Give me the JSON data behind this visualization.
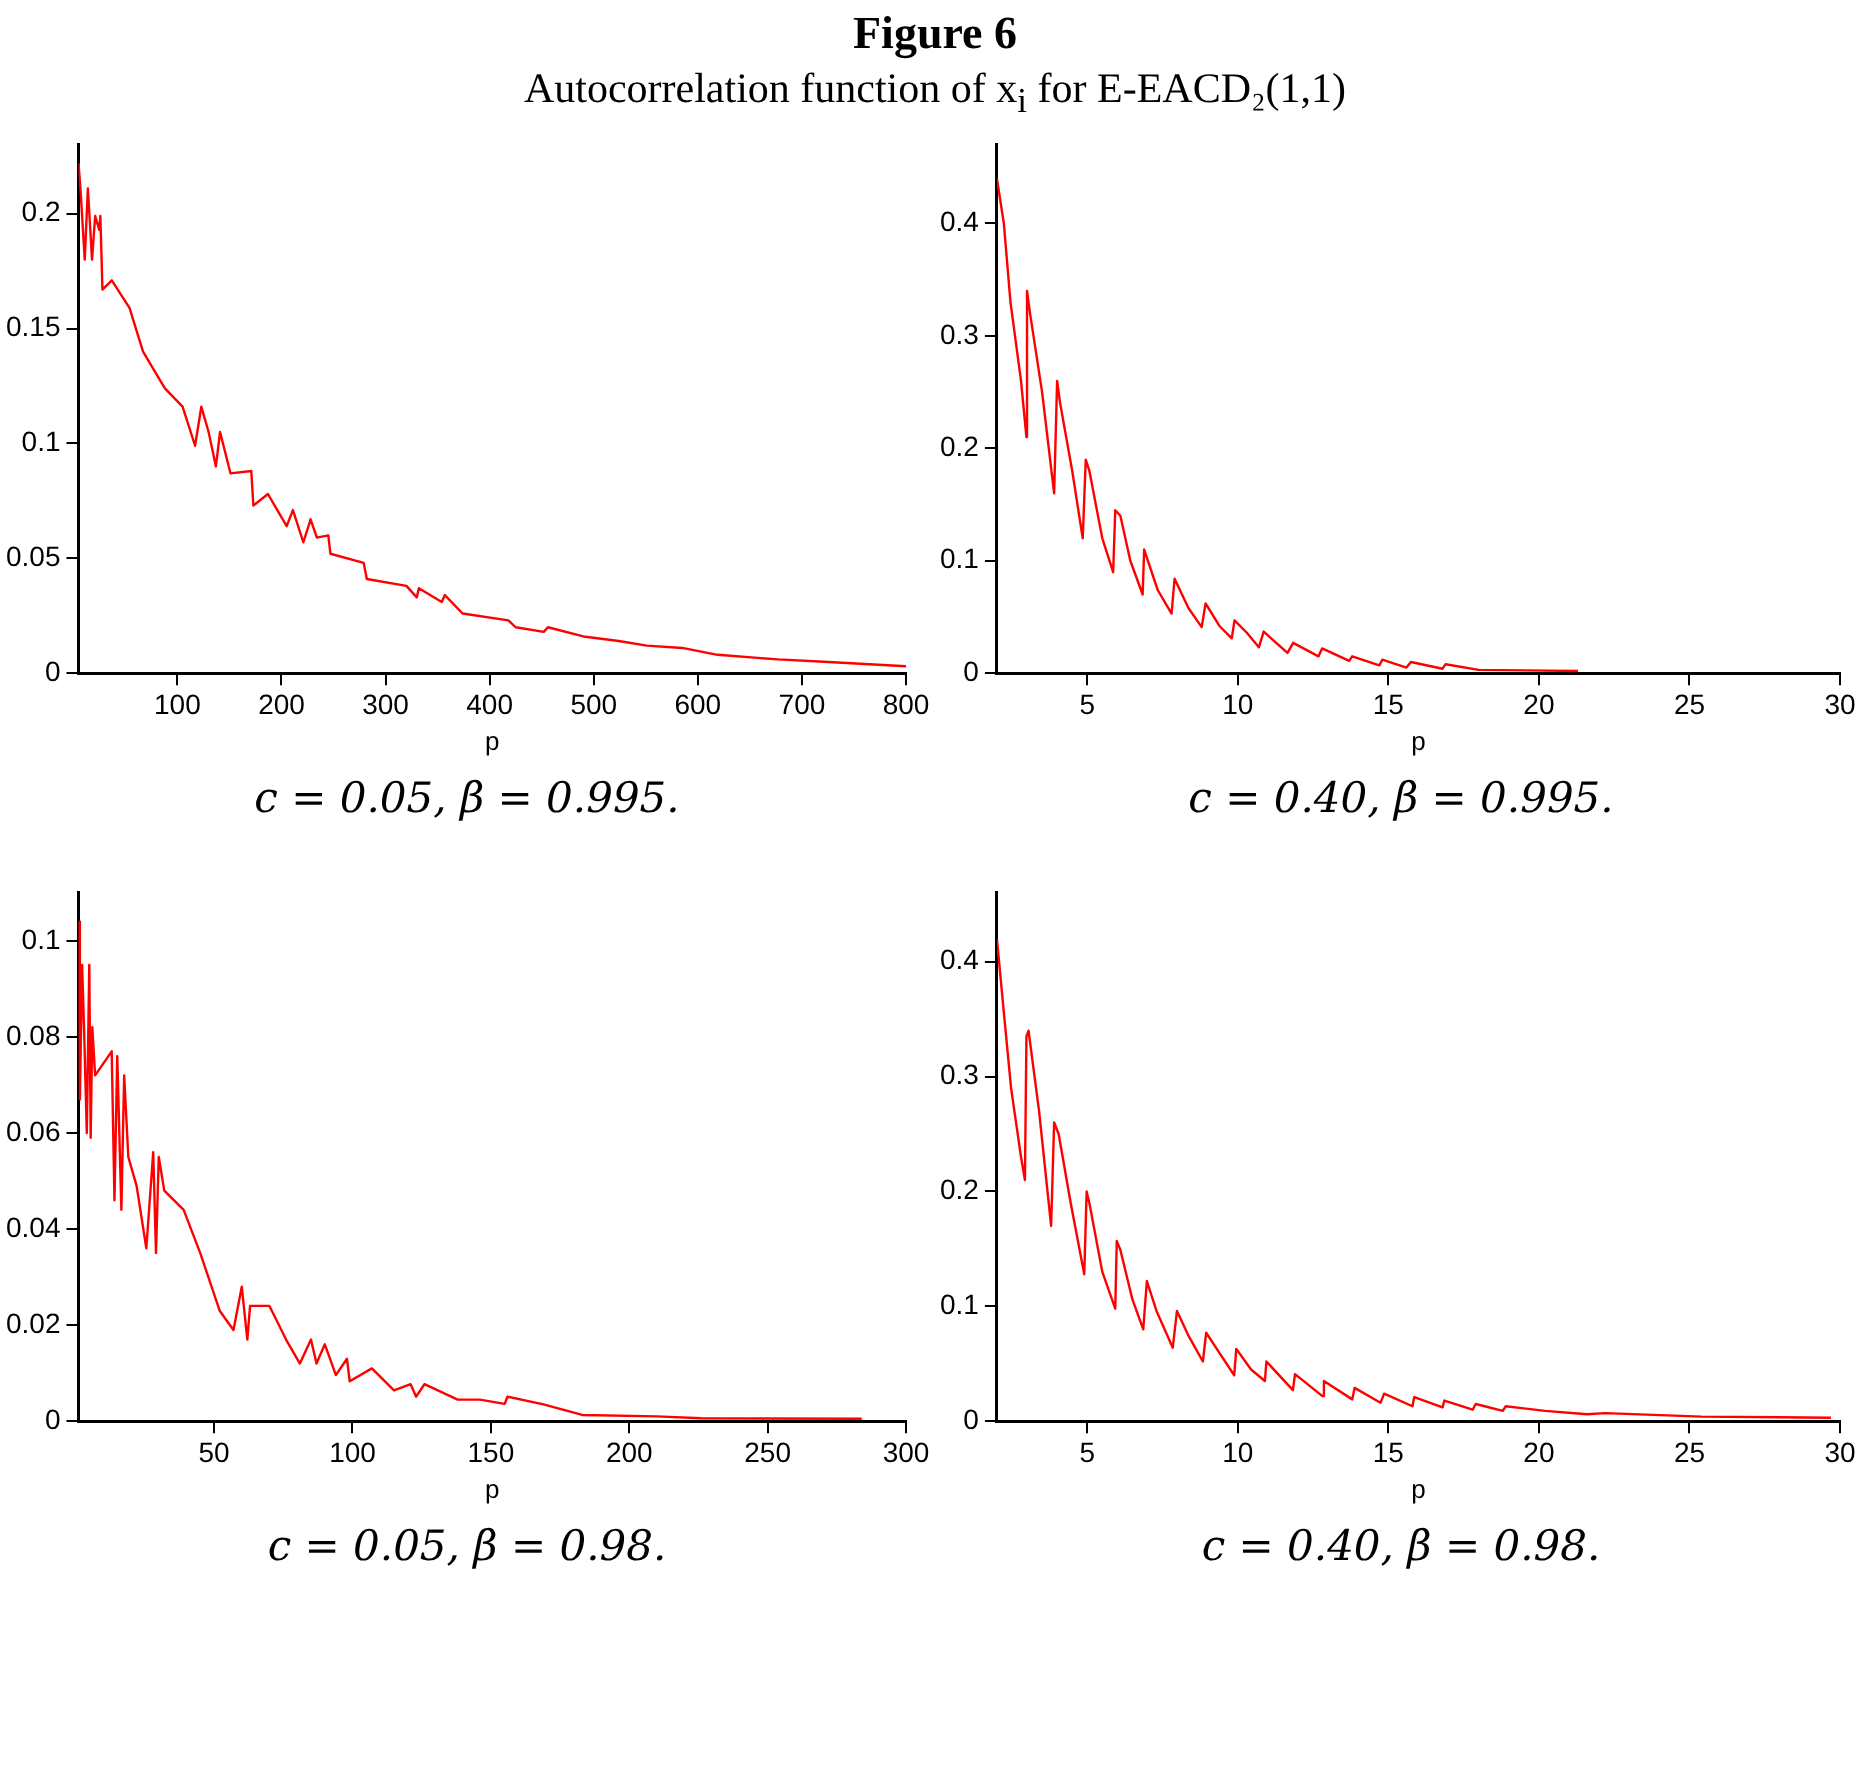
{
  "chart_data": [
    {
      "type": "line",
      "title": "Figure 6",
      "subtitle": "Autocorrelation function of x$_{i}$ for E-EACD₂(1,1)",
      "xlabel": "p",
      "xlim": [
        5,
        800
      ],
      "xticks": [
        100,
        200,
        300,
        400,
        500,
        600,
        700,
        800
      ],
      "ylim": [
        0,
        0.23
      ],
      "yticks": [
        0,
        0.05,
        0.1,
        0.15,
        0.2
      ],
      "grid": false,
      "legend": false,
      "marker": "none",
      "annotations": [
        "c = 0.05, β = 0.995."
      ],
      "series": [
        {
          "color": "#ff0000",
          "x": [
            5,
            7,
            11,
            14,
            18,
            21,
            25,
            26,
            28,
            37,
            54,
            67,
            88,
            105,
            117,
            123,
            130,
            137,
            141,
            151,
            171,
            173,
            187,
            205,
            211,
            221,
            228,
            234,
            245,
            247,
            279,
            282,
            320,
            330,
            332,
            354,
            357,
            374,
            418,
            425,
            452,
            456,
            490,
            524,
            551,
            585,
            619,
            677,
            721,
            800
          ],
          "values": [
            0.222,
            0.21,
            0.18,
            0.211,
            0.18,
            0.199,
            0.193,
            0.199,
            0.167,
            0.171,
            0.159,
            0.14,
            0.124,
            0.116,
            0.099,
            0.116,
            0.105,
            0.09,
            0.105,
            0.087,
            0.088,
            0.073,
            0.078,
            0.064,
            0.071,
            0.057,
            0.067,
            0.059,
            0.06,
            0.052,
            0.048,
            0.041,
            0.038,
            0.033,
            0.037,
            0.031,
            0.034,
            0.026,
            0.023,
            0.02,
            0.018,
            0.02,
            0.016,
            0.014,
            0.012,
            0.011,
            0.008,
            0.006,
            0.005,
            0.003
          ]
        }
      ]
    },
    {
      "type": "line",
      "xlabel": "p",
      "xlim": [
        2,
        30
      ],
      "xticks": [
        5,
        10,
        15,
        20,
        25,
        30
      ],
      "ylim": [
        0,
        0.47
      ],
      "yticks": [
        0,
        0.1,
        0.2,
        0.3,
        0.4
      ],
      "grid": false,
      "legend": false,
      "marker": "none",
      "annotations": [
        "c = 0.40, β = 0.995."
      ],
      "series": [
        {
          "color": "#ff0000",
          "x": [
            2,
            2.23,
            2.45,
            2.8,
            2.98,
            3,
            3.1,
            3.5,
            3.9,
            4,
            4.1,
            4.5,
            4.85,
            4.95,
            5.07,
            5.5,
            5.86,
            5.93,
            6.1,
            6.43,
            6.84,
            6.89,
            7.34,
            7.8,
            7.9,
            8.36,
            8.8,
            8.93,
            9.39,
            9.8,
            9.89,
            10.3,
            10.7,
            10.86,
            11.65,
            11.84,
            12.68,
            12.8,
            13.7,
            13.8,
            14.7,
            14.8,
            15.6,
            15.75,
            16.8,
            16.9,
            18,
            21.3
          ],
          "values": [
            0.44,
            0.4,
            0.33,
            0.26,
            0.21,
            0.34,
            0.32,
            0.25,
            0.16,
            0.26,
            0.24,
            0.18,
            0.12,
            0.19,
            0.18,
            0.12,
            0.09,
            0.145,
            0.14,
            0.1,
            0.07,
            0.11,
            0.074,
            0.053,
            0.084,
            0.058,
            0.041,
            0.062,
            0.042,
            0.031,
            0.047,
            0.036,
            0.023,
            0.037,
            0.018,
            0.027,
            0.015,
            0.022,
            0.011,
            0.015,
            0.007,
            0.012,
            0.005,
            0.01,
            0.004,
            0.008,
            0.003,
            0.002
          ]
        }
      ]
    },
    {
      "type": "line",
      "xlabel": "p",
      "xlim": [
        1,
        300
      ],
      "xticks": [
        50,
        100,
        150,
        200,
        250,
        300
      ],
      "ylim": [
        0,
        0.11
      ],
      "yticks": [
        0,
        0.02,
        0.04,
        0.06,
        0.08,
        0.1
      ],
      "grid": false,
      "legend": false,
      "marker": "none",
      "annotations": [
        "c = 0.05, β = 0.98."
      ],
      "series": [
        {
          "color": "#ff0000",
          "x": [
            1,
            1.5,
            2.3,
            3,
            4,
            4.9,
            5.4,
            6,
            7,
            13,
            14,
            15,
            16.5,
            17.5,
            19,
            22,
            25.5,
            28,
            29,
            30,
            32,
            39,
            45,
            52,
            57,
            60,
            62,
            63,
            70,
            76,
            81,
            85,
            87,
            90,
            94,
            98,
            99,
            107,
            115,
            121,
            123,
            126,
            138,
            146,
            155,
            156,
            169,
            183,
            210,
            226,
            284
          ],
          "values": [
            0.104,
            0.067,
            0.095,
            0.082,
            0.06,
            0.095,
            0.059,
            0.082,
            0.072,
            0.077,
            0.046,
            0.076,
            0.044,
            0.072,
            0.055,
            0.049,
            0.036,
            0.056,
            0.035,
            0.055,
            0.048,
            0.044,
            0.035,
            0.023,
            0.019,
            0.028,
            0.017,
            0.024,
            0.024,
            0.017,
            0.012,
            0.017,
            0.012,
            0.016,
            0.0096,
            0.013,
            0.0083,
            0.011,
            0.0064,
            0.0077,
            0.0051,
            0.0077,
            0.0045,
            0.0045,
            0.0036,
            0.0051,
            0.0035,
            0.0013,
            0.001,
            0.0006,
            0.0005
          ]
        }
      ]
    },
    {
      "type": "line",
      "xlabel": "p",
      "xlim": [
        2,
        30
      ],
      "xticks": [
        5,
        10,
        15,
        20,
        25,
        30
      ],
      "ylim": [
        0,
        0.46
      ],
      "yticks": [
        0,
        0.1,
        0.2,
        0.3,
        0.4
      ],
      "grid": false,
      "legend": false,
      "marker": "none",
      "annotations": [
        "c = 0.40, β = 0.98."
      ],
      "series": [
        {
          "color": "#ff0000",
          "x": [
            2,
            2.23,
            2.47,
            2.8,
            2.93,
            2.98,
            3.05,
            3.4,
            3.8,
            3.9,
            4.05,
            4.45,
            4.9,
            4.98,
            5.07,
            5.5,
            5.93,
            5.98,
            6.1,
            6.5,
            6.86,
            6.98,
            7.3,
            7.84,
            7.98,
            8.37,
            8.84,
            8.95,
            9.4,
            9.88,
            9.95,
            10.44,
            10.9,
            10.95,
            11.83,
            11.9,
            12.8,
            12.86,
            13.8,
            13.88,
            14.74,
            14.86,
            15.8,
            15.86,
            16.8,
            16.86,
            17.8,
            17.9,
            18.8,
            18.9,
            20.2,
            21.6,
            22.2,
            25.4,
            29.7
          ],
          "values": [
            0.42,
            0.356,
            0.29,
            0.23,
            0.21,
            0.335,
            0.34,
            0.27,
            0.17,
            0.26,
            0.25,
            0.19,
            0.128,
            0.2,
            0.19,
            0.13,
            0.098,
            0.157,
            0.149,
            0.106,
            0.08,
            0.122,
            0.096,
            0.064,
            0.096,
            0.074,
            0.052,
            0.077,
            0.059,
            0.04,
            0.063,
            0.045,
            0.035,
            0.052,
            0.027,
            0.041,
            0.022,
            0.035,
            0.019,
            0.029,
            0.016,
            0.024,
            0.013,
            0.021,
            0.012,
            0.018,
            0.01,
            0.015,
            0.009,
            0.013,
            0.009,
            0.006,
            0.007,
            0.004,
            0.003
          ]
        }
      ]
    }
  ]
}
